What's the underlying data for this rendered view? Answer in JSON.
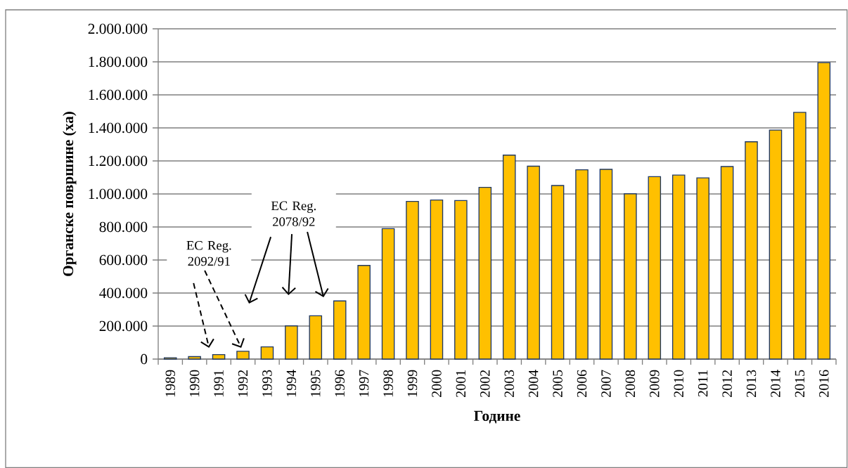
{
  "chart_data": {
    "type": "bar",
    "xlabel": "Године",
    "ylabel": "Органске површине (ха)",
    "categories": [
      "1989",
      "1990",
      "1991",
      "1992",
      "1993",
      "1994",
      "1995",
      "1996",
      "1997",
      "1998",
      "1999",
      "2000",
      "2001",
      "2002",
      "2003",
      "2004",
      "2005",
      "2006",
      "2007",
      "2008",
      "2009",
      "2010",
      "2011",
      "2012",
      "2013",
      "2014",
      "2015",
      "2016"
    ],
    "values": [
      8000,
      15000,
      27000,
      47000,
      74000,
      201000,
      262000,
      352000,
      567000,
      790000,
      955000,
      963000,
      960000,
      1040000,
      1235000,
      1168000,
      1051000,
      1146000,
      1149000,
      1001000,
      1105000,
      1114000,
      1097000,
      1166000,
      1316000,
      1387000,
      1494000,
      1795000
    ],
    "color": "#ffc000",
    "ylim": [
      0,
      2000000
    ],
    "yticks": [
      {
        "value": 0,
        "label": "0"
      },
      {
        "value": 200000,
        "label": "200.000"
      },
      {
        "value": 400000,
        "label": "400.000"
      },
      {
        "value": 600000,
        "label": "600.000"
      },
      {
        "value": 800000,
        "label": "800.000"
      },
      {
        "value": 1000000,
        "label": "1.000.000"
      },
      {
        "value": 1200000,
        "label": "1.200.000"
      },
      {
        "value": 1400000,
        "label": "1.400.000"
      },
      {
        "value": 1600000,
        "label": "1.600.000"
      },
      {
        "value": 1800000,
        "label": "1.800.000"
      },
      {
        "value": 2000000,
        "label": "2.000.000"
      }
    ],
    "grid": "y",
    "annotations": [
      "EC Reg. 2092/91",
      "EC Reg. 2078/92"
    ]
  }
}
